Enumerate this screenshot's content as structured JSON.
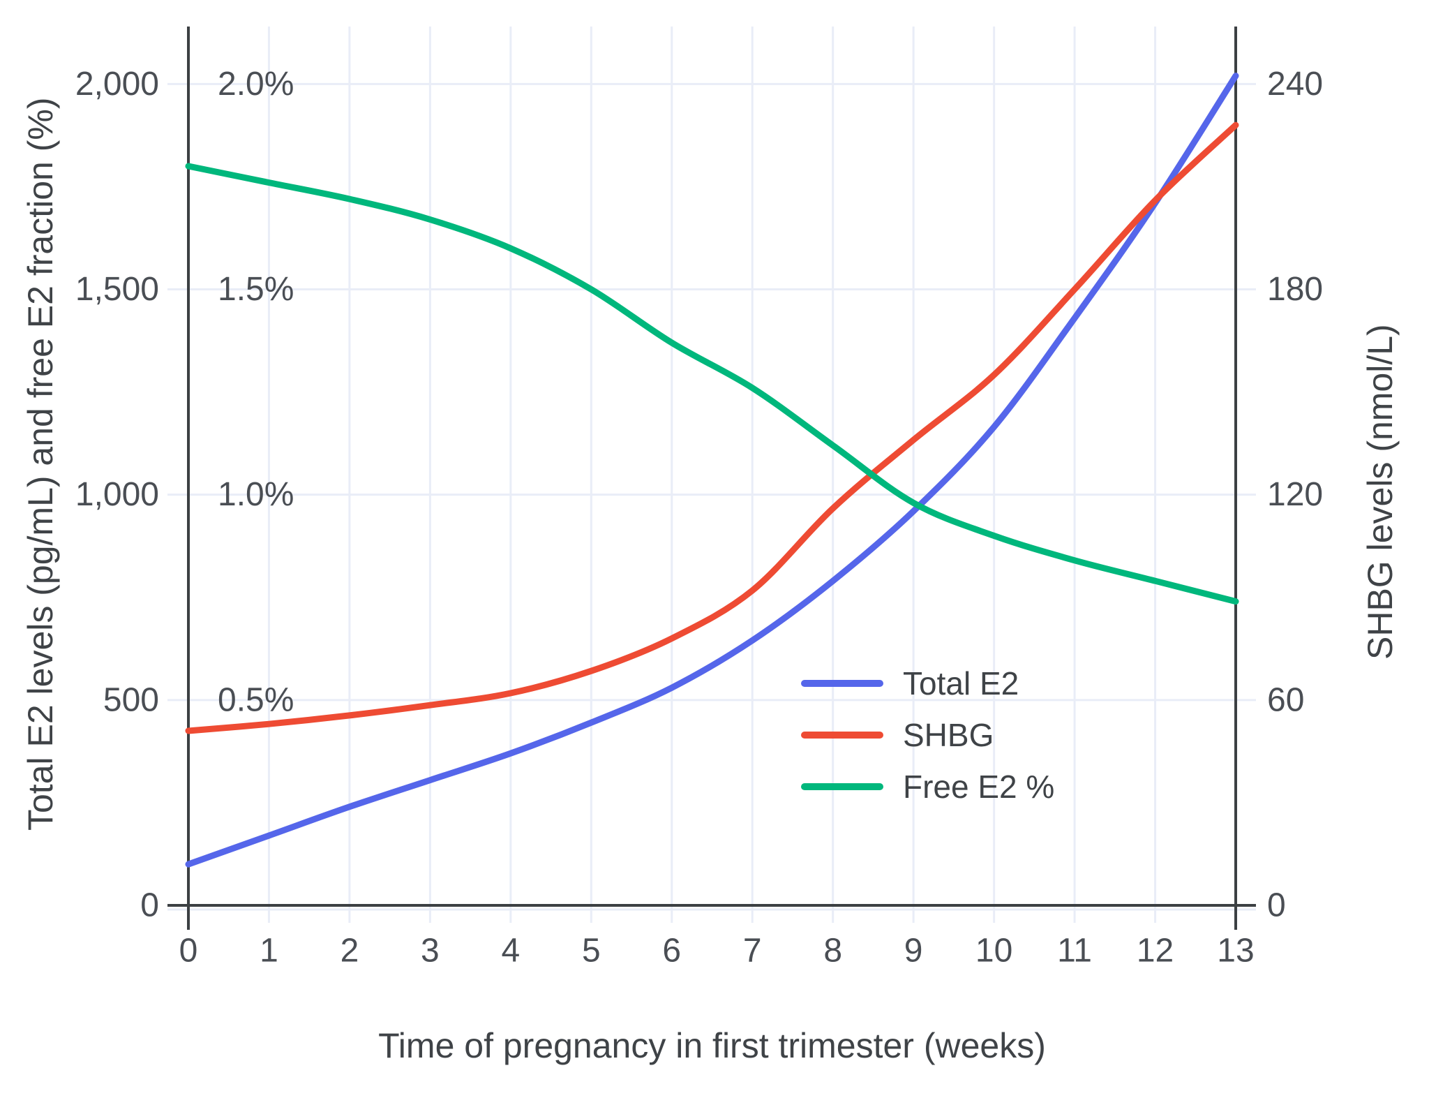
{
  "chart_data": {
    "type": "line",
    "x": [
      0,
      1,
      2,
      3,
      4,
      5,
      6,
      7,
      8,
      9,
      10,
      11,
      12,
      13
    ],
    "x_range": [
      0,
      13
    ],
    "y_left_range": [
      0,
      2140
    ],
    "y_right_range": [
      0,
      256.8
    ],
    "xlabel": "Time of pregnancy in first trimester (weeks)",
    "ylabel_left": "Total E2 levels (pg/mL) and free E2 fraction (%)",
    "ylabel_right": "SHBG levels (nmol/L)",
    "grid": true,
    "legend_position": "inside-right-middle",
    "x_tick_labels": [
      "0",
      "1",
      "2",
      "3",
      "4",
      "5",
      "6",
      "7",
      "8",
      "9",
      "10",
      "11",
      "12",
      "13"
    ],
    "y_left_ticks": [
      {
        "value": 0,
        "label": "0"
      },
      {
        "value": 500,
        "label": "500"
      },
      {
        "value": 1000,
        "label": "1,000"
      },
      {
        "value": 1500,
        "label": "1,500"
      },
      {
        "value": 2000,
        "label": "2,000"
      }
    ],
    "y_left_percent_ticks": [
      {
        "value": 500,
        "label": "0.5%"
      },
      {
        "value": 1000,
        "label": "1.0%"
      },
      {
        "value": 1500,
        "label": "1.5%"
      },
      {
        "value": 2000,
        "label": "2.0%"
      }
    ],
    "y_right_ticks": [
      {
        "value": 0,
        "label": "0"
      },
      {
        "value": 60,
        "label": "60"
      },
      {
        "value": 120,
        "label": "120"
      },
      {
        "value": 180,
        "label": "180"
      },
      {
        "value": 240,
        "label": "240"
      }
    ],
    "series": [
      {
        "name": "Total E2",
        "axis": "left",
        "units": "pg/mL",
        "color": "#5566ea",
        "values": [
          100,
          170,
          240,
          305,
          370,
          445,
          530,
          645,
          790,
          960,
          1165,
          1430,
          1710,
          2020
        ]
      },
      {
        "name": "SHBG",
        "axis": "right",
        "units": "nmol/L",
        "color": "#ee4b33",
        "values": [
          51,
          53,
          55.5,
          58.5,
          62,
          68.5,
          78,
          92,
          116,
          136,
          155,
          180,
          206,
          228
        ]
      },
      {
        "name": "Free E2 %",
        "axis": "left-percent",
        "units": "%",
        "color": "#00b77c",
        "values": [
          1.8,
          1.76,
          1.72,
          1.67,
          1.6,
          1.5,
          1.37,
          1.26,
          1.12,
          0.98,
          0.9,
          0.84,
          0.79,
          0.74
        ]
      }
    ]
  },
  "style": {
    "background": "#ffffff",
    "grid_color": "#e9edf7",
    "axis_color": "#3c4043",
    "tick_text_color": "#4a4e54",
    "title_text_color": "#3f4347"
  }
}
